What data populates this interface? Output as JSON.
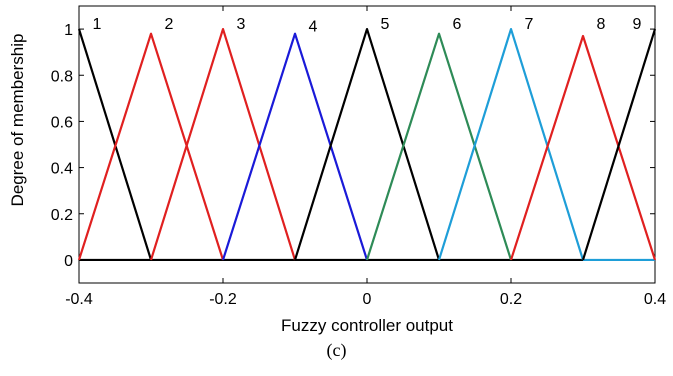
{
  "chart_data": {
    "type": "line",
    "xlabel": "Fuzzy  controller output",
    "ylabel": "Degree of membership",
    "xlim": [
      -0.4,
      0.4
    ],
    "ylim": [
      -0.1,
      1.1
    ],
    "x_ticks": [
      "-0.4",
      "-0.2",
      "0",
      "0.2",
      "0.4"
    ],
    "x_tick_values": [
      -0.4,
      -0.2,
      0,
      0.2,
      0.4
    ],
    "y_ticks": [
      "0",
      "0.2",
      "0.4",
      "0.6",
      "0.8",
      "1"
    ],
    "y_tick_values": [
      0,
      0.2,
      0.4,
      0.6,
      0.8,
      1
    ],
    "grid": false,
    "series": [
      {
        "name": "1",
        "color": "#000000",
        "x": [
          -0.4,
          -0.3
        ],
        "y": [
          1,
          0
        ]
      },
      {
        "name": "2",
        "color": "#e02020",
        "x": [
          -0.4,
          -0.3,
          -0.2
        ],
        "y": [
          0,
          0.98,
          0
        ]
      },
      {
        "name": "3",
        "color": "#e02020",
        "x": [
          -0.3,
          -0.2,
          -0.1
        ],
        "y": [
          0,
          1,
          0
        ]
      },
      {
        "name": "4",
        "color": "#1a1ad8",
        "x": [
          -0.2,
          -0.1,
          0
        ],
        "y": [
          0,
          0.98,
          0
        ]
      },
      {
        "name": "5",
        "color": "#000000",
        "x": [
          -0.1,
          0,
          0.1
        ],
        "y": [
          0,
          1,
          0
        ]
      },
      {
        "name": "6",
        "color": "#2e8b57",
        "x": [
          0,
          0.1,
          0.2
        ],
        "y": [
          0,
          0.98,
          0
        ]
      },
      {
        "name": "7",
        "color": "#1e9ed8",
        "x": [
          0.1,
          0.2,
          0.3
        ],
        "y": [
          0,
          1,
          0
        ]
      },
      {
        "name": "8",
        "color": "#e02020",
        "x": [
          0.2,
          0.3,
          0.4
        ],
        "y": [
          0,
          0.97,
          0
        ]
      },
      {
        "name": "9",
        "color": "#000000",
        "x": [
          0.3,
          0.4
        ],
        "y": [
          0,
          1
        ]
      }
    ],
    "zero_lines": [
      {
        "color": "#000000",
        "x": [
          -0.4,
          0.3
        ],
        "y": [
          0,
          0
        ]
      },
      {
        "color": "#1e9ed8",
        "x": [
          0.3,
          0.4
        ],
        "y": [
          0,
          0
        ]
      }
    ],
    "labels": [
      {
        "text": "1",
        "x": -0.375,
        "y": 1.0
      },
      {
        "text": "2",
        "x": -0.275,
        "y": 1.0
      },
      {
        "text": "3",
        "x": -0.175,
        "y": 1.0
      },
      {
        "text": "4",
        "x": -0.075,
        "y": 0.99
      },
      {
        "text": "5",
        "x": 0.025,
        "y": 1.0
      },
      {
        "text": "6",
        "x": 0.125,
        "y": 1.0
      },
      {
        "text": "7",
        "x": 0.225,
        "y": 1.0
      },
      {
        "text": "8",
        "x": 0.325,
        "y": 1.0
      },
      {
        "text": "9",
        "x": 0.375,
        "y": 1.0
      }
    ]
  },
  "caption": "(c)"
}
